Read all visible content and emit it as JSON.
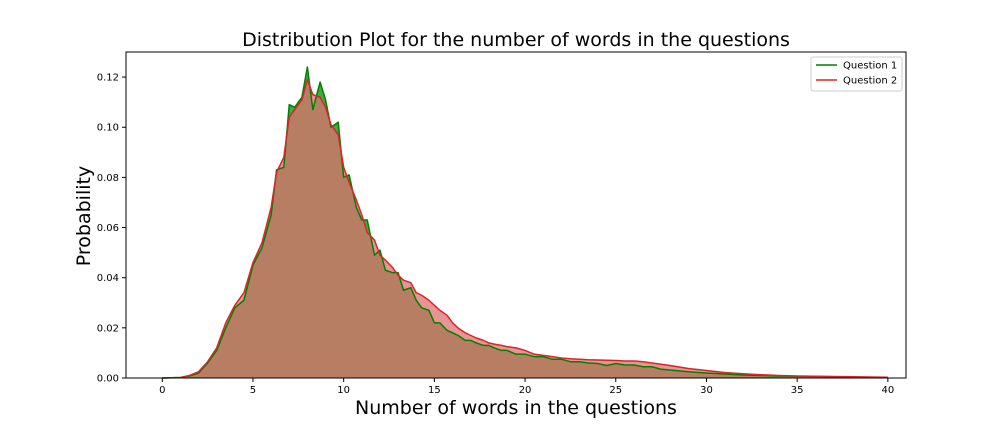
{
  "chart_data": {
    "type": "area",
    "title": "Distribution Plot for the number of words in the questions",
    "xlabel": "Number of words in the questions",
    "ylabel": "Probability",
    "xlim": [
      -2,
      41
    ],
    "ylim": [
      0,
      0.13
    ],
    "x_ticks": [
      0,
      5,
      10,
      15,
      20,
      25,
      30,
      35,
      40
    ],
    "y_ticks": [
      0.0,
      0.02,
      0.04,
      0.06,
      0.08,
      0.1,
      0.12
    ],
    "legend": {
      "placement": "top-right",
      "entries": [
        "Question 1",
        "Question 2"
      ]
    },
    "grid": false,
    "series": [
      {
        "name": "Question 1",
        "color": "#008000",
        "fill": "#2ca02c",
        "x": [
          0,
          1,
          1.5,
          2,
          2.5,
          3,
          3.5,
          4,
          4.5,
          5,
          5.5,
          6,
          6.3,
          6.7,
          7,
          7.3,
          7.7,
          8,
          8.3,
          8.7,
          9,
          9.3,
          9.7,
          10,
          10.3,
          10.7,
          11,
          11.3,
          11.7,
          12,
          12.3,
          12.7,
          13,
          13.3,
          13.7,
          14,
          14.3,
          14.7,
          15,
          15.3,
          15.7,
          16,
          16.3,
          16.7,
          17,
          17.3,
          17.7,
          18,
          18.3,
          18.7,
          19,
          19.5,
          20,
          20.5,
          21,
          21.5,
          22,
          22.5,
          23,
          23.5,
          24,
          24.5,
          25,
          25.5,
          26,
          26.5,
          27,
          27.5,
          28,
          29,
          30,
          31,
          32,
          33,
          34,
          35,
          36,
          37,
          38,
          39,
          40
        ],
        "values": [
          0.0,
          0.0002,
          0.0008,
          0.002,
          0.006,
          0.011,
          0.02,
          0.028,
          0.031,
          0.045,
          0.052,
          0.065,
          0.083,
          0.084,
          0.109,
          0.108,
          0.112,
          0.124,
          0.107,
          0.118,
          0.111,
          0.1,
          0.102,
          0.08,
          0.081,
          0.068,
          0.063,
          0.063,
          0.049,
          0.051,
          0.043,
          0.042,
          0.042,
          0.035,
          0.036,
          0.031,
          0.028,
          0.027,
          0.022,
          0.022,
          0.019,
          0.018,
          0.017,
          0.015,
          0.015,
          0.014,
          0.013,
          0.013,
          0.012,
          0.011,
          0.011,
          0.0095,
          0.0095,
          0.0085,
          0.0085,
          0.0075,
          0.0075,
          0.0065,
          0.0065,
          0.006,
          0.0058,
          0.005,
          0.0058,
          0.0052,
          0.0052,
          0.0045,
          0.0045,
          0.0035,
          0.0032,
          0.0025,
          0.002,
          0.0016,
          0.0012,
          0.001,
          0.0008,
          0.0007,
          0.0006,
          0.0005,
          0.0004,
          0.0003,
          0.0002
        ]
      },
      {
        "name": "Question 2",
        "color": "#d62728",
        "fill": "#e07070",
        "x": [
          0,
          1,
          1.5,
          2,
          2.5,
          3,
          3.5,
          4,
          4.5,
          5,
          5.5,
          6,
          6.3,
          6.7,
          7,
          7.3,
          7.7,
          8,
          8.3,
          8.7,
          9,
          9.3,
          9.7,
          10,
          10.3,
          10.7,
          11,
          11.3,
          11.7,
          12,
          12.3,
          12.7,
          13,
          13.3,
          13.7,
          14,
          14.3,
          14.7,
          15,
          15.3,
          15.7,
          16,
          16.3,
          16.7,
          17,
          17.3,
          17.7,
          18,
          18.3,
          18.7,
          19,
          19.5,
          20,
          20.5,
          21,
          21.5,
          22,
          22.5,
          23,
          23.5,
          24,
          24.5,
          25,
          25.5,
          26,
          26.5,
          27,
          27.5,
          28,
          29,
          30,
          31,
          32,
          33,
          34,
          35,
          36,
          37,
          38,
          39,
          40
        ],
        "values": [
          0.0,
          0.0002,
          0.001,
          0.0025,
          0.0065,
          0.012,
          0.022,
          0.029,
          0.034,
          0.046,
          0.054,
          0.068,
          0.082,
          0.088,
          0.104,
          0.107,
          0.111,
          0.119,
          0.113,
          0.112,
          0.108,
          0.101,
          0.097,
          0.084,
          0.078,
          0.071,
          0.065,
          0.058,
          0.055,
          0.049,
          0.047,
          0.044,
          0.041,
          0.039,
          0.038,
          0.034,
          0.033,
          0.031,
          0.029,
          0.027,
          0.025,
          0.022,
          0.02,
          0.018,
          0.017,
          0.016,
          0.015,
          0.014,
          0.0135,
          0.013,
          0.0125,
          0.012,
          0.011,
          0.0095,
          0.009,
          0.0085,
          0.008,
          0.0077,
          0.0075,
          0.0073,
          0.0072,
          0.0071,
          0.007,
          0.0068,
          0.0068,
          0.0065,
          0.006,
          0.0055,
          0.005,
          0.0038,
          0.003,
          0.0022,
          0.0017,
          0.0013,
          0.001,
          0.0008,
          0.0007,
          0.0006,
          0.0005,
          0.0004,
          0.0003
        ]
      }
    ]
  }
}
